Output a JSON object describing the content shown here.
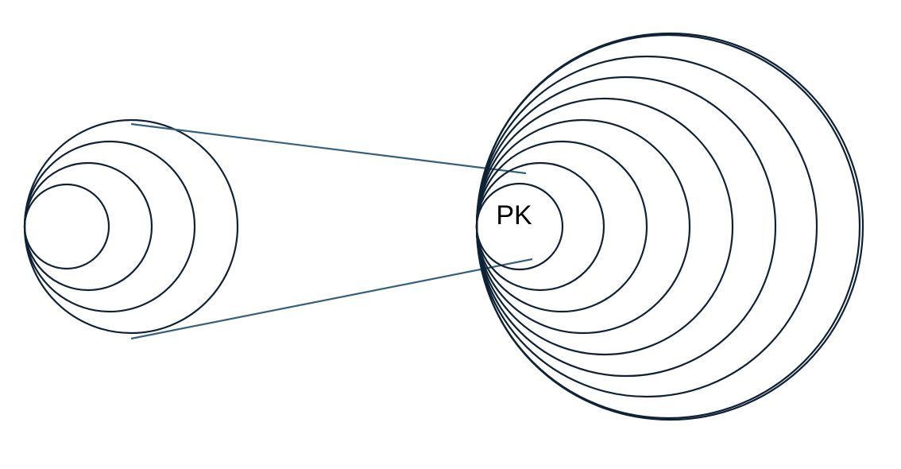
{
  "center_label": "PK",
  "colors": {
    "ring_stroke": "#0f2236",
    "connector_stroke": "#36607f",
    "background": "#ffffff"
  },
  "left_cluster": {
    "ring_count": 4
  },
  "right_cluster": {
    "ring_count": 9
  }
}
